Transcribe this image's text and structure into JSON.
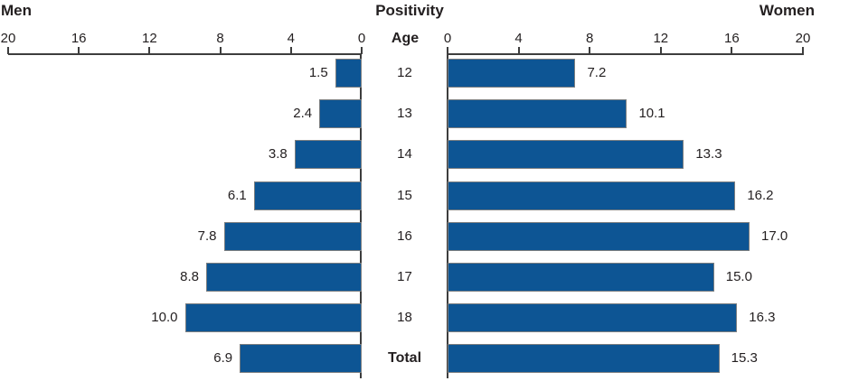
{
  "header": {
    "left": "Men",
    "title": "Positivity",
    "right": "Women",
    "age": "Age"
  },
  "chart_data": {
    "type": "bar",
    "variant": "population-pyramid",
    "title": "Positivity",
    "categories": [
      "12",
      "13",
      "14",
      "15",
      "16",
      "17",
      "18",
      "Total"
    ],
    "center_axis_label": "Age",
    "series": [
      {
        "name": "Men",
        "side": "left",
        "values": [
          1.5,
          2.4,
          3.8,
          6.1,
          7.8,
          8.8,
          10.0,
          6.9
        ],
        "labels": [
          "1.5",
          "2.4",
          "3.8",
          "6.1",
          "7.8",
          "8.8",
          "10.0",
          "6.9"
        ]
      },
      {
        "name": "Women",
        "side": "right",
        "values": [
          7.2,
          10.1,
          13.3,
          16.2,
          17.0,
          15.0,
          16.3,
          15.3
        ],
        "labels": [
          "7.2",
          "10.1",
          "13.3",
          "16.2",
          "17.0",
          "15.0",
          "16.3",
          "15.3"
        ]
      }
    ],
    "left_axis_ticks": [
      20,
      16,
      12,
      8,
      4,
      0
    ],
    "right_axis_ticks": [
      0,
      4,
      8,
      12,
      16,
      20
    ],
    "xlim": [
      0,
      20
    ],
    "grid": false,
    "legend_position": "none",
    "bar_color": "#0d5594",
    "bar_border_color": "#7b7e80",
    "axis_color": "#3d3d3d",
    "text_color": "#231f20"
  }
}
